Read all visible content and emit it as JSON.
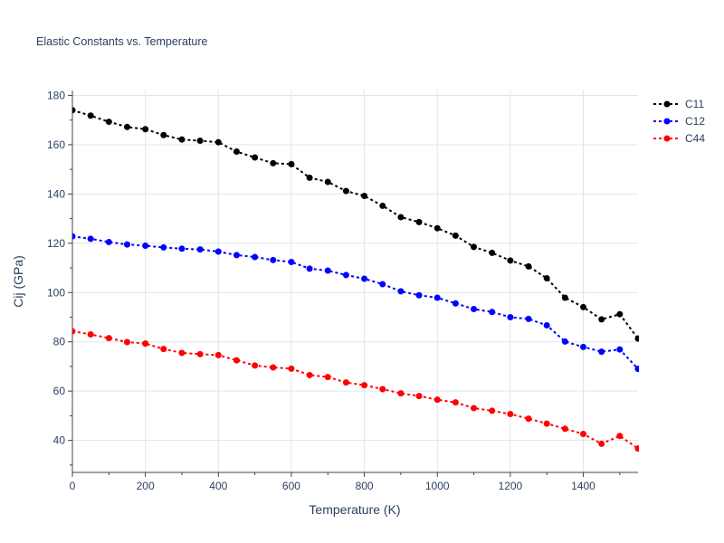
{
  "chart_data": {
    "type": "line",
    "title": "Elastic Constants vs. Temperature",
    "xlabel": "Temperature (K)",
    "ylabel": "Cij (GPa)",
    "xlim": [
      0,
      1550
    ],
    "ylim": [
      27,
      182
    ],
    "xticks": [
      0,
      200,
      400,
      600,
      800,
      1000,
      1200,
      1400
    ],
    "yticks": [
      40,
      60,
      80,
      100,
      120,
      140,
      160,
      180
    ],
    "grid": true,
    "legend_position": "top-right",
    "x": [
      0,
      50,
      100,
      150,
      200,
      250,
      300,
      350,
      400,
      450,
      500,
      550,
      600,
      650,
      700,
      750,
      800,
      850,
      900,
      950,
      1000,
      1050,
      1100,
      1150,
      1200,
      1250,
      1300,
      1350,
      1400,
      1450,
      1500,
      1550
    ],
    "series": [
      {
        "name": "C11",
        "color": "#000000",
        "values": [
          174,
          171.8,
          169.3,
          167.2,
          166.3,
          163.9,
          162.1,
          161.6,
          161.0,
          157.2,
          154.8,
          152.5,
          152.1,
          146.6,
          144.9,
          141.2,
          139.2,
          135.2,
          130.6,
          128.6,
          126.1,
          123.1,
          118.5,
          116.1,
          113.0,
          110.6,
          105.8,
          97.9,
          94.1,
          89.1,
          91.2,
          81.3
        ]
      },
      {
        "name": "C12",
        "color": "#0000ff",
        "values": [
          122.8,
          121.8,
          120.5,
          119.5,
          119.0,
          118.3,
          117.8,
          117.5,
          116.6,
          115.2,
          114.4,
          113.2,
          112.4,
          109.7,
          108.9,
          107.1,
          105.6,
          103.4,
          100.5,
          98.9,
          97.9,
          95.6,
          93.3,
          92.1,
          90.0,
          89.3,
          86.7,
          80.1,
          77.9,
          76.0,
          76.9,
          69.0
        ]
      },
      {
        "name": "C44",
        "color": "#ff0000",
        "values": [
          84.3,
          83.0,
          81.5,
          79.9,
          79.3,
          77.1,
          75.5,
          75.0,
          74.6,
          72.5,
          70.4,
          69.6,
          69.1,
          66.5,
          65.7,
          63.5,
          62.4,
          60.8,
          59.1,
          58.0,
          56.5,
          55.4,
          53.1,
          52.0,
          50.7,
          48.8,
          46.8,
          44.7,
          42.6,
          38.6,
          41.8,
          36.7
        ]
      }
    ]
  }
}
